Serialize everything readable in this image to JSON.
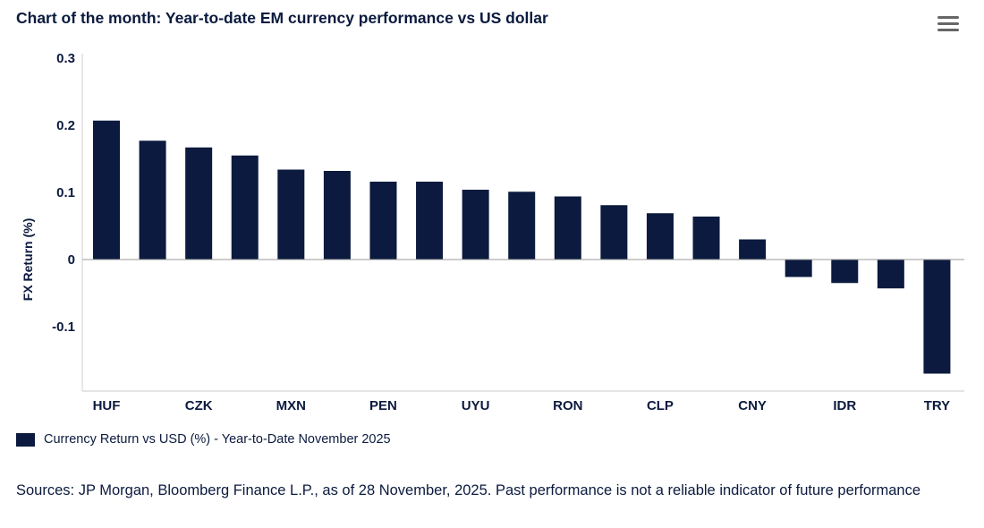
{
  "title": "Chart of the month: Year-to-date EM currency performance vs US dollar",
  "menu": {
    "icon": "hamburger-menu-icon"
  },
  "chart_data": {
    "type": "bar",
    "categories": [
      "HUF",
      "",
      "CZK",
      "",
      "MXN",
      "",
      "PEN",
      "",
      "UYU",
      "",
      "RON",
      "",
      "CLP",
      "",
      "CNY",
      "",
      "IDR",
      "",
      "TRY"
    ],
    "series": [
      {
        "name": "Currency Return vs USD (%) - Year-to-Date November 2025",
        "color": "#0b1a3e",
        "values": [
          0.207,
          0.177,
          0.167,
          0.155,
          0.134,
          0.132,
          0.116,
          0.116,
          0.104,
          0.101,
          0.094,
          0.081,
          0.069,
          0.064,
          0.03,
          -0.026,
          -0.035,
          -0.043,
          -0.17
        ]
      }
    ],
    "ylabel": "FX Return (%)",
    "xlabel": "",
    "ylim": [
      -0.18,
      0.3
    ],
    "yticks": [
      "0.3",
      "0.2",
      "0.1",
      "0",
      "-0.1"
    ],
    "ytick_values": [
      0.3,
      0.2,
      0.1,
      0,
      -0.1
    ],
    "grid": false,
    "legend_position": "bottom-left"
  },
  "legend": {
    "label": "Currency Return vs USD (%) - Year-to-Date November 2025"
  },
  "source": "Sources: JP Morgan, Bloomberg Finance L.P., as of 28 November, 2025. Past performance is not a reliable indicator of future performance"
}
